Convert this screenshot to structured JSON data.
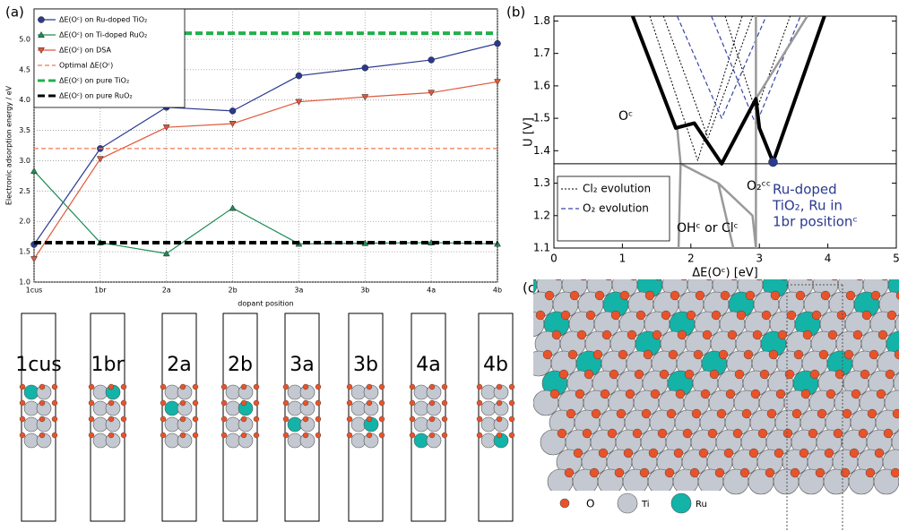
{
  "panels": [
    "(a)",
    "(b)",
    "(c)"
  ],
  "chart_data": [
    {
      "type": "line",
      "xlabel": "dopant position",
      "ylabel": "Electronic adsorption energy / eV",
      "categories": [
        "1cus",
        "1br",
        "2a",
        "2b",
        "3a",
        "3b",
        "4a",
        "4b"
      ],
      "ylim": [
        1.0,
        5.5
      ],
      "yticks": [
        {
          "value": 1.0,
          "label": "1.0"
        },
        1.5,
        {
          "value": 2.0,
          "label": "2.0"
        },
        2.5,
        {
          "value": 3.0,
          "label": "3.0"
        },
        3.5,
        {
          "value": 4.0,
          "label": "4.0"
        },
        4.5,
        {
          "value": 5.0,
          "label": "5.0"
        }
      ],
      "grid": true,
      "series": [
        {
          "name": "ΔE(Oᶜ) on Ru-doped TiO₂",
          "color": "#2b3a8f",
          "marker": "circle",
          "style": "solid",
          "values": [
            1.62,
            3.2,
            3.88,
            3.82,
            4.4,
            4.53,
            4.66,
            4.93
          ]
        },
        {
          "name": "ΔE(Oᶜ) on Ti-doped RuO₂",
          "color": "#1e8c55",
          "marker": "triangle-up",
          "style": "solid",
          "values": [
            2.83,
            1.65,
            1.47,
            2.22,
            1.63,
            1.64,
            1.65,
            1.63
          ]
        },
        {
          "name": "ΔE(Oᶜ) on DSA",
          "color": "#e0583a",
          "marker": "triangle-down",
          "style": "solid",
          "values": [
            1.38,
            3.03,
            3.55,
            3.61,
            3.97,
            4.05,
            4.12,
            4.3
          ]
        },
        {
          "name": "Optimal ΔE(Oᶜ)",
          "color": "#f07850",
          "style": "dashed",
          "y": 3.2
        },
        {
          "name": "ΔE(Oᶜ) on pure TiO₂",
          "color": "#22b04b",
          "style": "thick-dashed",
          "y": 5.1
        },
        {
          "name": "ΔE(Oᶜ) on pure RuO₂",
          "color": "#000000",
          "style": "thick-dashed",
          "y": 1.65
        }
      ]
    },
    {
      "type": "line",
      "xlabel": "ΔE(Oᶜ) [eV]",
      "ylabel": "U [V]",
      "xlim": [
        0,
        5
      ],
      "xticks": [
        0,
        1,
        2,
        3,
        4,
        5
      ],
      "ylim": [
        1.1,
        1.815
      ],
      "yticks": [
        1.1,
        1.2,
        1.3,
        1.4,
        1.5,
        1.6,
        1.7,
        1.8
      ],
      "annotations": [
        "Oᶜ",
        "O₂ᶜᶜ",
        "OHᶜ or Clᶜ",
        "Ru-doped",
        "TiO₂, Ru in",
        "1br positionᶜ"
      ],
      "series": [
        {
          "name": "Cl₂ evolution",
          "color": "#000000",
          "style": "dotted",
          "x": [
            1.4,
            2.1,
            2.75,
            null,
            1.6,
            2.25,
            2.9,
            null,
            2.5,
            2.95,
            3.45
          ],
          "values": [
            1.815,
            1.37,
            1.815,
            null,
            1.815,
            1.44,
            1.815,
            null,
            1.815,
            1.52,
            1.815
          ]
        },
        {
          "name": "O₂ evolution",
          "color": "#3a45a8",
          "style": "dashed",
          "x": [
            1.8,
            2.45,
            3.1,
            null,
            2.3,
            2.95,
            3.6
          ],
          "values": [
            1.815,
            1.5,
            1.815,
            null,
            1.815,
            1.48,
            1.815
          ]
        },
        {
          "color": "#999999",
          "style": "gray",
          "x": [
            1.8,
            1.85,
            1.82,
            null,
            1.85,
            2.4,
            2.9,
            2.95,
            null,
            2.4,
            2.62,
            null,
            2.95,
            2.95,
            null,
            2.45,
            2.95,
            3.7
          ],
          "values": [
            1.47,
            1.36,
            1.1,
            null,
            1.36,
            1.3,
            1.2,
            1.1,
            null,
            1.3,
            1.1,
            null,
            1.815,
            1.1,
            null,
            1.36,
            1.56,
            1.815
          ]
        },
        {
          "color": "#000000",
          "style": "thick",
          "x": [
            1.15,
            1.78,
            2.05,
            2.45,
            2.95,
            3.0,
            3.2,
            3.95
          ],
          "values": [
            1.815,
            1.47,
            1.485,
            1.36,
            1.56,
            1.47,
            1.365,
            1.815
          ]
        },
        {
          "color": "#000000",
          "style": "thin",
          "x": [
            0,
            5
          ],
          "values": [
            1.36,
            1.36
          ]
        },
        {
          "color": "#2b3a8f",
          "style": "none",
          "marker": "circle",
          "x": [
            3.2
          ],
          "values": [
            1.365
          ]
        }
      ]
    }
  ],
  "structures": [
    "1cus",
    "1br",
    "2a",
    "2b",
    "3a",
    "3b",
    "4a",
    "4b"
  ],
  "legend_c": [
    "O",
    "Ti",
    "Ru"
  ]
}
